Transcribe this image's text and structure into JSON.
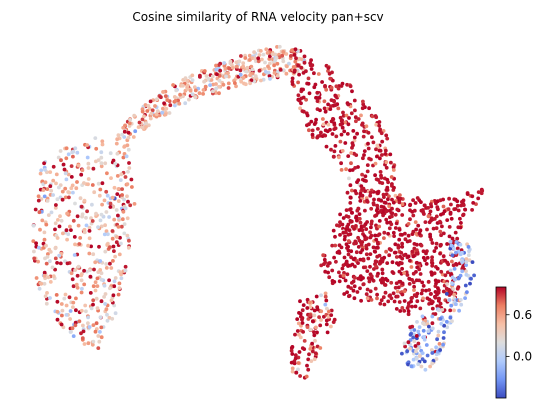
{
  "chart_data": {
    "type": "scatter",
    "title": "Cosine similarity of RNA velocity pan+scv",
    "xlabel": "",
    "ylabel": "",
    "grid": false,
    "axes_visible": false,
    "colormap": "coolwarm",
    "colorbar": {
      "vmin": -0.6,
      "vmax": 1.0,
      "ticks": [
        0.6,
        0.0
      ],
      "tick_labels": [
        "0.6",
        "0.0"
      ],
      "colors": [
        "#3b4cc0",
        "#7396f5",
        "#b0cbfc",
        "#dddddd",
        "#f6bfa6",
        "#ec7f63",
        "#b40426"
      ]
    },
    "regions": [
      {
        "name": "left lobe",
        "value_mean": 0.45
      },
      {
        "name": "top arc",
        "value_mean": 0.5
      },
      {
        "name": "central body",
        "value_mean": 0.9
      },
      {
        "name": "lower right cluster",
        "value_mean": -0.1
      }
    ]
  }
}
